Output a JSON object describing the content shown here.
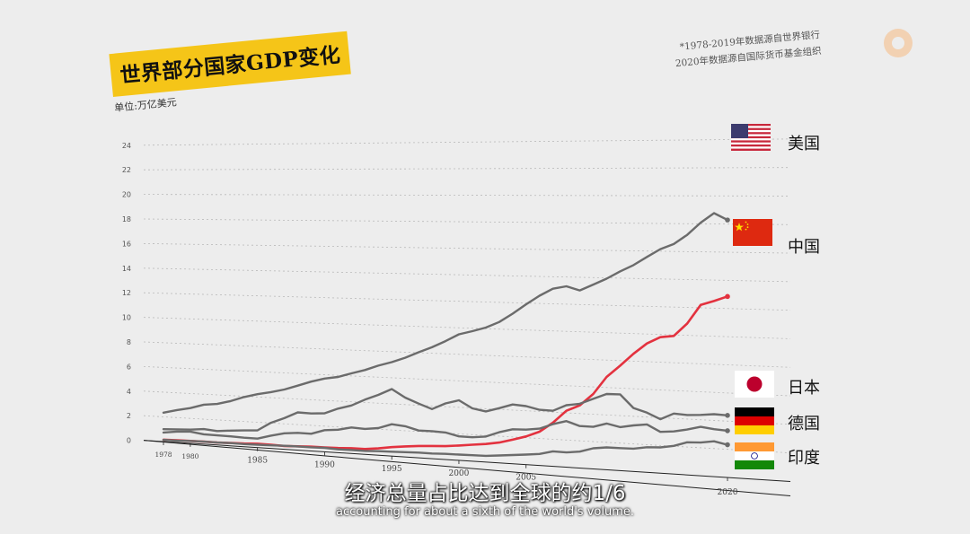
{
  "title": "世界部分国家GDP变化",
  "unit": "单位:万亿美元",
  "source_notes": [
    "*1978-2019年数据源自世界银行",
    "2020年数据源自国际货币基金组织"
  ],
  "subtitle_zh": "经济总量占比达到全球的约1/6",
  "subtitle_en": "accounting for about a sixth of the world's volume.",
  "colors": {
    "title_bg": "#f5c518",
    "grey_line": "#6b6b6b",
    "china_line": "#e3323f",
    "background": "#ededed"
  },
  "chart_data": {
    "type": "line",
    "title": "世界部分国家GDP变化",
    "ylabel": "单位:万亿美元",
    "ylim": [
      0,
      26
    ],
    "y_ticks": [
      "0",
      "2",
      "4",
      "6",
      "8",
      "10",
      "12",
      "14",
      "16",
      "18",
      "20",
      "22",
      "24"
    ],
    "x_ticks": [
      "1978",
      "1980",
      "1985",
      "1990",
      "1995",
      "2000",
      "2005",
      "2020"
    ],
    "x": [
      1978,
      1979,
      1980,
      1981,
      1982,
      1983,
      1984,
      1985,
      1986,
      1987,
      1988,
      1989,
      1990,
      1991,
      1992,
      1993,
      1994,
      1995,
      1996,
      1997,
      1998,
      1999,
      2000,
      2001,
      2002,
      2003,
      2004,
      2005,
      2006,
      2007,
      2008,
      2009,
      2010,
      2011,
      2012,
      2013,
      2014,
      2015,
      2016,
      2017,
      2018,
      2019,
      2020
    ],
    "series": [
      {
        "name": "美国",
        "flag": "us-flag-icon",
        "values": [
          2.35,
          2.63,
          2.86,
          3.21,
          3.34,
          3.64,
          4.04,
          4.34,
          4.58,
          4.86,
          5.24,
          5.64,
          5.96,
          6.16,
          6.52,
          6.86,
          7.29,
          7.64,
          8.07,
          8.58,
          9.06,
          9.63,
          10.25,
          10.58,
          10.94,
          11.46,
          12.21,
          13.04,
          13.81,
          14.45,
          14.71,
          14.45,
          14.99,
          15.54,
          16.2,
          16.78,
          17.52,
          18.22,
          18.71,
          19.52,
          20.58,
          21.43,
          20.94
        ]
      },
      {
        "name": "中国",
        "flag": "china-flag-icon",
        "values": [
          0.15,
          0.18,
          0.19,
          0.2,
          0.2,
          0.23,
          0.26,
          0.31,
          0.3,
          0.27,
          0.31,
          0.35,
          0.36,
          0.38,
          0.43,
          0.44,
          0.56,
          0.73,
          0.86,
          0.96,
          1.03,
          1.09,
          1.21,
          1.34,
          1.47,
          1.66,
          1.96,
          2.29,
          2.75,
          3.55,
          4.59,
          5.1,
          6.09,
          7.55,
          8.53,
          9.57,
          10.48,
          11.06,
          11.23,
          12.31,
          13.89,
          14.28,
          14.72
        ]
      },
      {
        "name": "日本",
        "flag": "japan-flag-icon",
        "values": [
          1.01,
          1.06,
          1.11,
          1.22,
          1.13,
          1.24,
          1.32,
          1.4,
          2.08,
          2.53,
          3.07,
          3.05,
          3.13,
          3.58,
          3.91,
          4.45,
          4.91,
          5.45,
          4.83,
          4.41,
          4.03,
          4.56,
          4.89,
          4.3,
          4.12,
          4.45,
          4.82,
          4.76,
          4.53,
          4.52,
          5.04,
          5.23,
          5.7,
          6.16,
          6.2,
          5.16,
          4.85,
          4.39,
          4.92,
          4.87,
          4.95,
          5.08,
          5.05
        ]
      },
      {
        "name": "德国",
        "flag": "germany-flag-icon",
        "values": [
          0.74,
          0.88,
          0.95,
          0.8,
          0.78,
          0.77,
          0.73,
          0.73,
          1.04,
          1.3,
          1.4,
          1.4,
          1.76,
          1.87,
          2.12,
          2.07,
          2.21,
          2.59,
          2.5,
          2.22,
          2.24,
          2.2,
          1.95,
          1.95,
          2.08,
          2.5,
          2.81,
          2.85,
          3.0,
          3.43,
          3.75,
          3.42,
          3.42,
          3.76,
          3.54,
          3.75,
          3.9,
          3.36,
          3.47,
          3.69,
          3.98,
          3.86,
          3.8
        ]
      },
      {
        "name": "印度",
        "flag": "india-flag-icon",
        "values": [
          0.14,
          0.15,
          0.19,
          0.2,
          0.2,
          0.22,
          0.21,
          0.23,
          0.25,
          0.28,
          0.3,
          0.3,
          0.32,
          0.27,
          0.29,
          0.28,
          0.33,
          0.36,
          0.39,
          0.42,
          0.42,
          0.46,
          0.47,
          0.49,
          0.51,
          0.61,
          0.71,
          0.82,
          0.94,
          1.22,
          1.2,
          1.34,
          1.68,
          1.82,
          1.83,
          1.86,
          2.04,
          2.1,
          2.29,
          2.65,
          2.7,
          2.87,
          2.66
        ]
      }
    ]
  }
}
